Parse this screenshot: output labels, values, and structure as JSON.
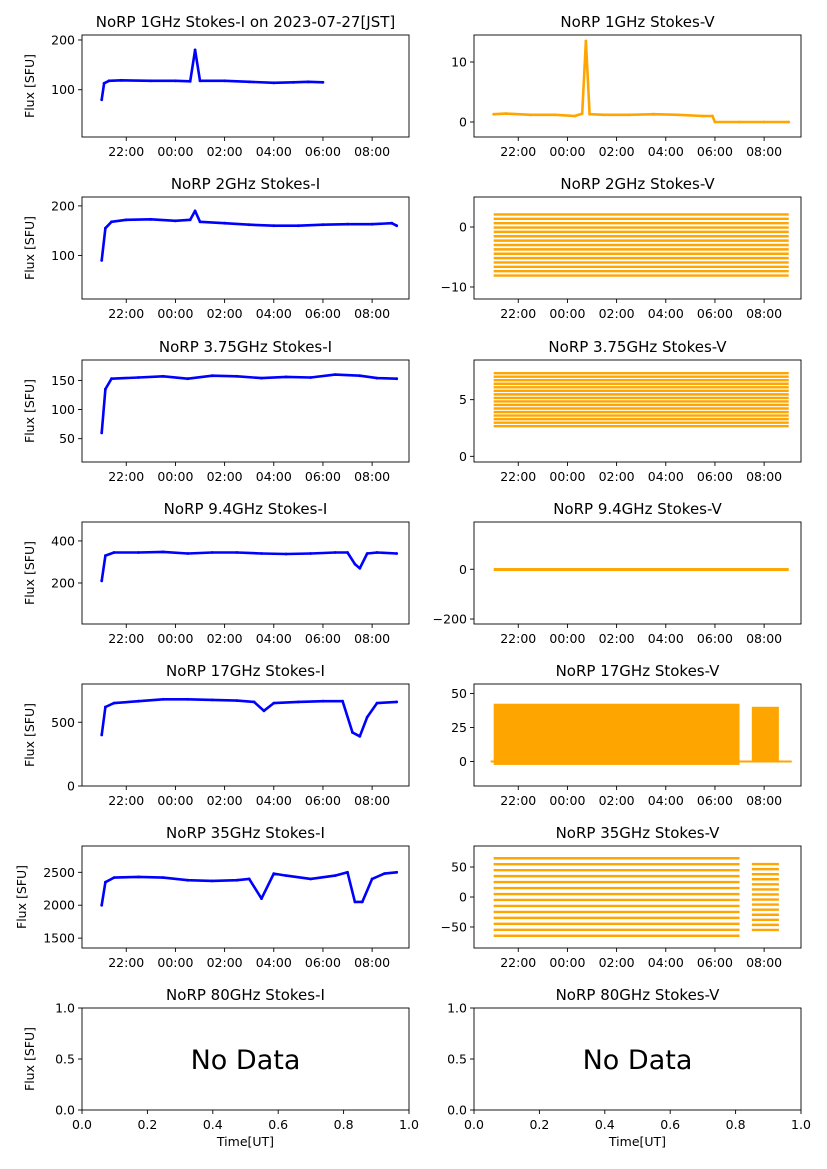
{
  "chart_data": [
    {
      "id": "p1i",
      "type": "scatter",
      "title": "NoRP 1GHz Stokes-I on 2023-07-27[JST]",
      "ylabel": "Flux [SFU]",
      "xlabel": "",
      "ylim": [
        5,
        210
      ],
      "yticks": [
        {
          "v": 100,
          "label": "100"
        },
        {
          "v": 200,
          "label": "200"
        }
      ],
      "xlim": [
        20.2,
        33.5
      ],
      "xticks": [
        {
          "v": 22,
          "label": "22:00"
        },
        {
          "v": 24,
          "label": "00:00"
        },
        {
          "v": 26,
          "label": "02:00"
        },
        {
          "v": 28,
          "label": "04:00"
        },
        {
          "v": 30,
          "label": "06:00"
        },
        {
          "v": 32,
          "label": "08:00"
        }
      ],
      "color": "#0000ff",
      "series": [
        {
          "t": [
            21.0,
            21.1,
            21.3,
            21.8,
            23.0,
            24.0,
            24.6,
            24.8,
            25.0,
            26.0,
            27.0,
            28.0,
            28.8,
            29.4,
            30.0
          ],
          "v": [
            80,
            113,
            118,
            119,
            118,
            118,
            117,
            180,
            118,
            118,
            116,
            114,
            115,
            116,
            115
          ]
        }
      ],
      "annotations": []
    },
    {
      "id": "p1v",
      "type": "scatter",
      "title": "NoRP 1GHz Stokes-V",
      "ylabel": "",
      "xlabel": "",
      "ylim": [
        -2.5,
        14.5
      ],
      "yticks": [
        {
          "v": 0,
          "label": "0"
        },
        {
          "v": 10,
          "label": "10"
        }
      ],
      "xlim": [
        20.2,
        33.5
      ],
      "xticks": [
        {
          "v": 22,
          "label": "22:00"
        },
        {
          "v": 24,
          "label": "00:00"
        },
        {
          "v": 26,
          "label": "02:00"
        },
        {
          "v": 28,
          "label": "04:00"
        },
        {
          "v": 30,
          "label": "06:00"
        },
        {
          "v": 32,
          "label": "08:00"
        }
      ],
      "color": "#ffa500",
      "series": [
        {
          "t": [
            21.0,
            21.5,
            22.5,
            23.5,
            24.3,
            24.6,
            24.75,
            24.9,
            25.5,
            26.5,
            27.5,
            28.5,
            29.5,
            29.9,
            30.0,
            31.0,
            32.0,
            33.0
          ],
          "v": [
            1.3,
            1.4,
            1.2,
            1.2,
            1.0,
            1.4,
            13.5,
            1.3,
            1.2,
            1.2,
            1.3,
            1.2,
            1.0,
            1.0,
            0,
            0,
            0,
            0
          ]
        }
      ],
      "annotations": []
    },
    {
      "id": "p2i",
      "type": "scatter",
      "title": "NoRP 2GHz Stokes-I",
      "ylabel": "Flux [SFU]",
      "xlabel": "",
      "ylim": [
        12,
        218
      ],
      "yticks": [
        {
          "v": 100,
          "label": "100"
        },
        {
          "v": 200,
          "label": "200"
        }
      ],
      "xlim": [
        20.2,
        33.5
      ],
      "xticks": [
        {
          "v": 22,
          "label": "22:00"
        },
        {
          "v": 24,
          "label": "00:00"
        },
        {
          "v": 26,
          "label": "02:00"
        },
        {
          "v": 28,
          "label": "04:00"
        },
        {
          "v": 30,
          "label": "06:00"
        },
        {
          "v": 32,
          "label": "08:00"
        }
      ],
      "color": "#0000ff",
      "series": [
        {
          "t": [
            21.0,
            21.15,
            21.4,
            22.0,
            23.0,
            24.0,
            24.6,
            24.8,
            25.0,
            26.0,
            27.0,
            28.0,
            29.0,
            30.0,
            31.0,
            32.0,
            32.8,
            33.0
          ],
          "v": [
            90,
            155,
            168,
            172,
            173,
            170,
            172,
            190,
            168,
            165,
            162,
            160,
            160,
            162,
            163,
            163,
            165,
            160
          ]
        }
      ],
      "annotations": []
    },
    {
      "id": "p2v",
      "type": "scatter",
      "title": "NoRP 2GHz Stokes-V",
      "ylabel": "",
      "xlabel": "",
      "ylim": [
        -12,
        5
      ],
      "yticks": [
        {
          "v": -10,
          "label": "−10"
        },
        {
          "v": 0,
          "label": "0"
        }
      ],
      "xlim": [
        20.2,
        33.5
      ],
      "xticks": [
        {
          "v": 22,
          "label": "22:00"
        },
        {
          "v": 24,
          "label": "00:00"
        },
        {
          "v": 26,
          "label": "02:00"
        },
        {
          "v": 28,
          "label": "04:00"
        },
        {
          "v": 30,
          "label": "06:00"
        },
        {
          "v": 32,
          "label": "08:00"
        }
      ],
      "color": "#ffa500",
      "series": [
        {
          "t": [
            21.0,
            33.0
          ],
          "v": [
            -3,
            -3
          ]
        }
      ],
      "annotations": []
    },
    {
      "id": "p3i",
      "type": "scatter",
      "title": "NoRP 3.75GHz Stokes-I",
      "ylabel": "Flux [SFU]",
      "xlabel": "",
      "ylim": [
        10,
        185
      ],
      "yticks": [
        {
          "v": 50,
          "label": "50"
        },
        {
          "v": 100,
          "label": "100"
        },
        {
          "v": 150,
          "label": "150"
        }
      ],
      "xlim": [
        20.2,
        33.5
      ],
      "xticks": [
        {
          "v": 22,
          "label": "22:00"
        },
        {
          "v": 24,
          "label": "00:00"
        },
        {
          "v": 26,
          "label": "02:00"
        },
        {
          "v": 28,
          "label": "04:00"
        },
        {
          "v": 30,
          "label": "06:00"
        },
        {
          "v": 32,
          "label": "08:00"
        }
      ],
      "color": "#0000ff",
      "series": [
        {
          "t": [
            21.0,
            21.15,
            21.4,
            22.5,
            23.5,
            24.5,
            25.5,
            26.5,
            27.5,
            28.5,
            29.5,
            30.5,
            31.5,
            32.2,
            33.0
          ],
          "v": [
            60,
            135,
            153,
            155,
            157,
            153,
            158,
            157,
            154,
            156,
            155,
            160,
            158,
            154,
            153
          ]
        }
      ],
      "annotations": []
    },
    {
      "id": "p3v",
      "type": "scatter",
      "title": "NoRP 3.75GHz Stokes-V",
      "ylabel": "",
      "xlabel": "",
      "ylim": [
        -0.5,
        8.5
      ],
      "yticks": [
        {
          "v": 0,
          "label": "0"
        },
        {
          "v": 5,
          "label": "5"
        }
      ],
      "xlim": [
        20.2,
        33.5
      ],
      "xticks": [
        {
          "v": 22,
          "label": "22:00"
        },
        {
          "v": 24,
          "label": "00:00"
        },
        {
          "v": 26,
          "label": "02:00"
        },
        {
          "v": 28,
          "label": "04:00"
        },
        {
          "v": 30,
          "label": "06:00"
        },
        {
          "v": 32,
          "label": "08:00"
        }
      ],
      "color": "#ffa500",
      "series": [
        {
          "t": [
            21.0,
            33.0
          ],
          "v": [
            5,
            5
          ]
        }
      ],
      "annotations": []
    },
    {
      "id": "p4i",
      "type": "scatter",
      "title": "NoRP 9.4GHz Stokes-I",
      "ylabel": "Flux [SFU]",
      "xlabel": "",
      "ylim": [
        5,
        490
      ],
      "yticks": [
        {
          "v": 200,
          "label": "200"
        },
        {
          "v": 400,
          "label": "400"
        }
      ],
      "xlim": [
        20.2,
        33.5
      ],
      "xticks": [
        {
          "v": 22,
          "label": "22:00"
        },
        {
          "v": 24,
          "label": "00:00"
        },
        {
          "v": 26,
          "label": "02:00"
        },
        {
          "v": 28,
          "label": "04:00"
        },
        {
          "v": 30,
          "label": "06:00"
        },
        {
          "v": 32,
          "label": "08:00"
        }
      ],
      "color": "#0000ff",
      "series": [
        {
          "t": [
            21.0,
            21.15,
            21.5,
            22.5,
            23.5,
            24.5,
            25.5,
            26.5,
            27.5,
            28.5,
            29.5,
            30.5,
            31.0,
            31.3,
            31.5,
            31.8,
            32.2,
            33.0
          ],
          "v": [
            210,
            330,
            345,
            345,
            348,
            340,
            345,
            345,
            340,
            338,
            340,
            345,
            345,
            290,
            270,
            340,
            345,
            340
          ]
        }
      ],
      "annotations": []
    },
    {
      "id": "p4v",
      "type": "scatter",
      "title": "NoRP 9.4GHz Stokes-V",
      "ylabel": "",
      "xlabel": "",
      "ylim": [
        -220,
        190
      ],
      "yticks": [
        {
          "v": -200,
          "label": "−200"
        },
        {
          "v": 0,
          "label": "0"
        }
      ],
      "xlim": [
        20.2,
        33.5
      ],
      "xticks": [
        {
          "v": 22,
          "label": "22:00"
        },
        {
          "v": 24,
          "label": "00:00"
        },
        {
          "v": 26,
          "label": "02:00"
        },
        {
          "v": 28,
          "label": "04:00"
        },
        {
          "v": 30,
          "label": "06:00"
        },
        {
          "v": 32,
          "label": "08:00"
        }
      ],
      "color": "#ffa500",
      "series": [
        {
          "t": [
            21.0,
            33.0
          ],
          "v": [
            0,
            0
          ]
        }
      ],
      "annotations": []
    },
    {
      "id": "p5i",
      "type": "scatter",
      "title": "NoRP 17GHz Stokes-I",
      "ylabel": "Flux [SFU]",
      "xlabel": "",
      "ylim": [
        0,
        800
      ],
      "yticks": [
        {
          "v": 0,
          "label": "0"
        },
        {
          "v": 500,
          "label": "500"
        }
      ],
      "xlim": [
        20.2,
        33.5
      ],
      "xticks": [
        {
          "v": 22,
          "label": "22:00"
        },
        {
          "v": 24,
          "label": "00:00"
        },
        {
          "v": 26,
          "label": "02:00"
        },
        {
          "v": 28,
          "label": "04:00"
        },
        {
          "v": 30,
          "label": "06:00"
        },
        {
          "v": 32,
          "label": "08:00"
        }
      ],
      "color": "#0000ff",
      "series": [
        {
          "t": [
            21.0,
            21.15,
            21.5,
            22.5,
            23.5,
            24.5,
            25.5,
            26.5,
            27.2,
            27.6,
            28.0,
            29.0,
            30.0,
            30.8,
            31.2,
            31.5,
            31.8,
            32.2,
            33.0
          ],
          "v": [
            400,
            620,
            650,
            665,
            680,
            680,
            675,
            670,
            660,
            590,
            650,
            660,
            665,
            665,
            420,
            390,
            540,
            650,
            660
          ]
        }
      ],
      "annotations": []
    },
    {
      "id": "p5v",
      "type": "scatter",
      "title": "NoRP 17GHz Stokes-V",
      "ylabel": "",
      "xlabel": "",
      "ylim": [
        -18,
        57
      ],
      "yticks": [
        {
          "v": 0,
          "label": "0"
        },
        {
          "v": 25,
          "label": "25"
        },
        {
          "v": 50,
          "label": "50"
        }
      ],
      "xlim": [
        20.2,
        33.5
      ],
      "xticks": [
        {
          "v": 22,
          "label": "22:00"
        },
        {
          "v": 24,
          "label": "00:00"
        },
        {
          "v": 26,
          "label": "02:00"
        },
        {
          "v": 28,
          "label": "04:00"
        },
        {
          "v": 30,
          "label": "06:00"
        },
        {
          "v": 32,
          "label": "08:00"
        }
      ],
      "color": "#ffa500",
      "series": [
        {
          "t": [
            21.0,
            33.0
          ],
          "v": [
            20,
            20
          ]
        }
      ],
      "annotations": []
    },
    {
      "id": "p6i",
      "type": "scatter",
      "title": "NoRP 35GHz Stokes-I",
      "ylabel": "Flux [SFU]",
      "xlabel": "",
      "ylim": [
        1350,
        2900
      ],
      "yticks": [
        {
          "v": 1500,
          "label": "1500"
        },
        {
          "v": 2000,
          "label": "2000"
        },
        {
          "v": 2500,
          "label": "2500"
        }
      ],
      "xlim": [
        20.2,
        33.5
      ],
      "xticks": [
        {
          "v": 22,
          "label": "22:00"
        },
        {
          "v": 24,
          "label": "00:00"
        },
        {
          "v": 26,
          "label": "02:00"
        },
        {
          "v": 28,
          "label": "04:00"
        },
        {
          "v": 30,
          "label": "06:00"
        },
        {
          "v": 32,
          "label": "08:00"
        }
      ],
      "color": "#0000ff",
      "series": [
        {
          "t": [
            21.0,
            21.15,
            21.5,
            22.5,
            23.5,
            24.5,
            25.5,
            26.5,
            27.0,
            27.5,
            28.0,
            28.5,
            29.5,
            30.5,
            31.0,
            31.3,
            31.6,
            32.0,
            32.5,
            33.0
          ],
          "v": [
            2000,
            2350,
            2420,
            2430,
            2420,
            2380,
            2370,
            2380,
            2400,
            2100,
            2480,
            2450,
            2400,
            2450,
            2500,
            2050,
            2050,
            2400,
            2480,
            2500
          ]
        }
      ],
      "annotations": []
    },
    {
      "id": "p6v",
      "type": "scatter",
      "title": "NoRP 35GHz Stokes-V",
      "ylabel": "",
      "xlabel": "",
      "ylim": [
        -85,
        85
      ],
      "yticks": [
        {
          "v": -50,
          "label": "−50"
        },
        {
          "v": 0,
          "label": "0"
        },
        {
          "v": 50,
          "label": "50"
        }
      ],
      "xlim": [
        20.2,
        33.5
      ],
      "xticks": [
        {
          "v": 22,
          "label": "22:00"
        },
        {
          "v": 24,
          "label": "00:00"
        },
        {
          "v": 26,
          "label": "02:00"
        },
        {
          "v": 28,
          "label": "04:00"
        },
        {
          "v": 30,
          "label": "06:00"
        },
        {
          "v": 32,
          "label": "08:00"
        }
      ],
      "color": "#ffa500",
      "series": [
        {
          "t": [
            21.0,
            33.0
          ],
          "v": [
            0,
            0
          ]
        }
      ],
      "annotations": []
    },
    {
      "id": "p7i",
      "type": "scatter",
      "title": "NoRP 80GHz Stokes-I",
      "ylabel": "Flux [SFU]",
      "xlabel": "Time[UT]",
      "ylim": [
        0,
        1
      ],
      "yticks": [
        {
          "v": 0,
          "label": "0.0"
        },
        {
          "v": 0.5,
          "label": "0.5"
        },
        {
          "v": 1,
          "label": "1.0"
        }
      ],
      "xlim": [
        0,
        1
      ],
      "xticks": [
        {
          "v": 0,
          "label": "0.0"
        },
        {
          "v": 0.2,
          "label": "0.2"
        },
        {
          "v": 0.4,
          "label": "0.4"
        },
        {
          "v": 0.6,
          "label": "0.6"
        },
        {
          "v": 0.8,
          "label": "0.8"
        },
        {
          "v": 1,
          "label": "1.0"
        }
      ],
      "color": "#0000ff",
      "series": [],
      "annotations": [
        "No Data"
      ]
    },
    {
      "id": "p7v",
      "type": "scatter",
      "title": "NoRP 80GHz Stokes-V",
      "ylabel": "",
      "xlabel": "Time[UT]",
      "ylim": [
        0,
        1
      ],
      "yticks": [
        {
          "v": 0,
          "label": "0.0"
        },
        {
          "v": 0.5,
          "label": "0.5"
        },
        {
          "v": 1,
          "label": "1.0"
        }
      ],
      "xlim": [
        0,
        1
      ],
      "xticks": [
        {
          "v": 0,
          "label": "0.0"
        },
        {
          "v": 0.2,
          "label": "0.2"
        },
        {
          "v": 0.4,
          "label": "0.4"
        },
        {
          "v": 0.6,
          "label": "0.6"
        },
        {
          "v": 0.8,
          "label": "0.8"
        },
        {
          "v": 1,
          "label": "1.0"
        }
      ],
      "color": "#ffa500",
      "series": [],
      "annotations": [
        "No Data"
      ]
    }
  ]
}
